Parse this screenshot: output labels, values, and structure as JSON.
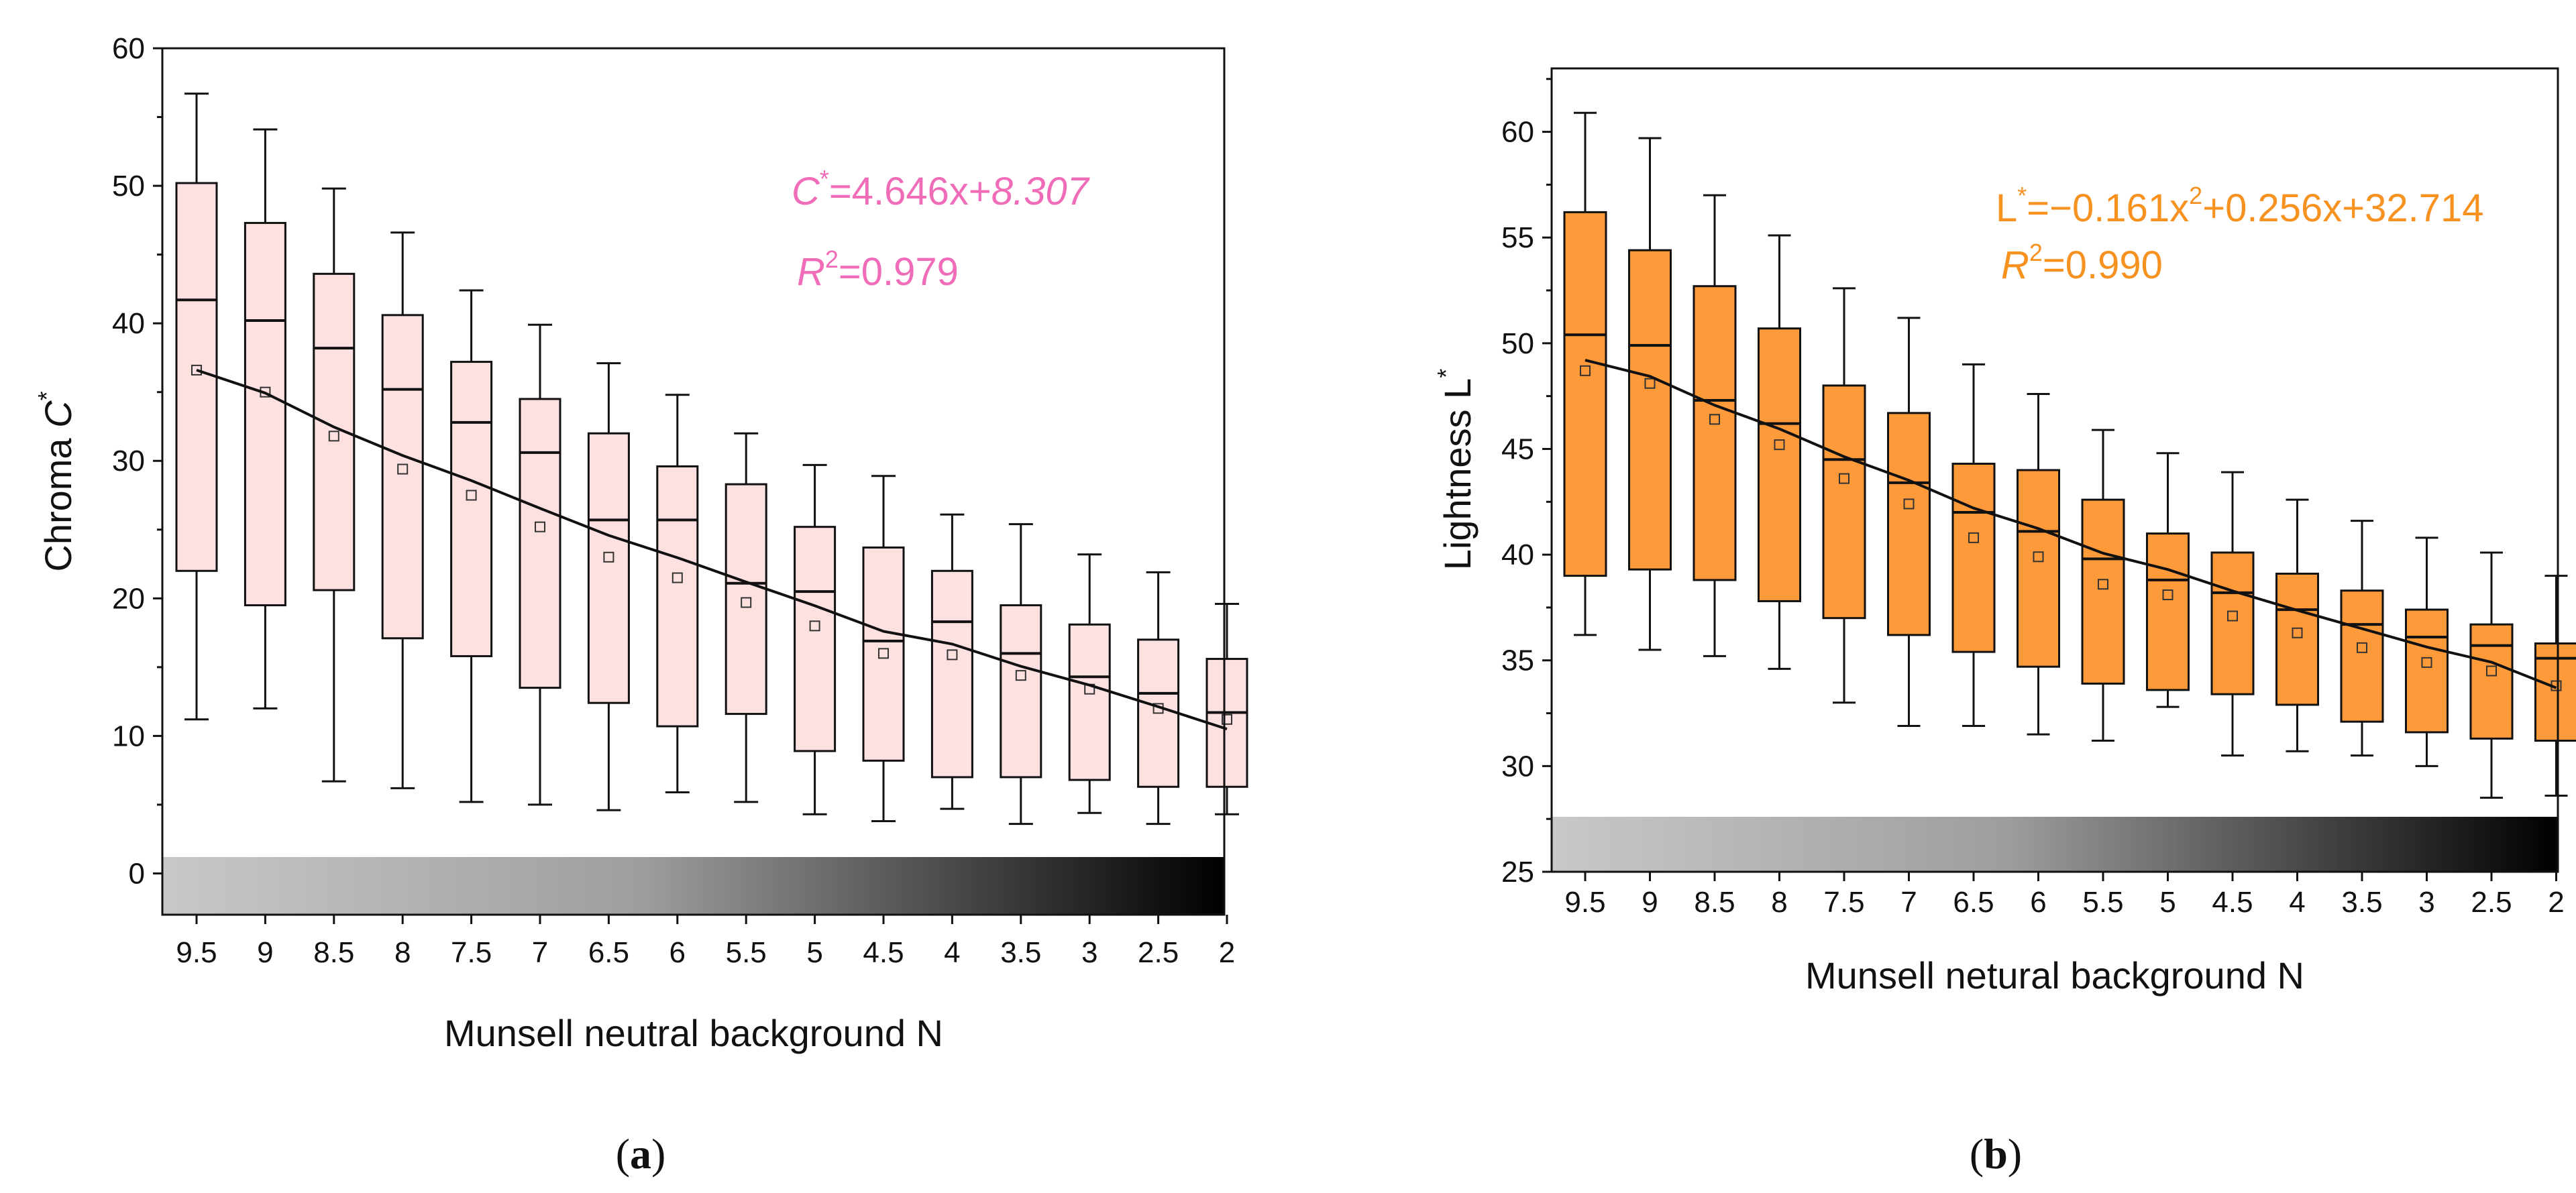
{
  "chart_data": [
    {
      "type": "box",
      "panel_label_prefix": "(",
      "panel_label_letter": "a",
      "panel_label_suffix": ")",
      "categories": [
        "9.5",
        "9",
        "8.5",
        "8",
        "7.5",
        "7",
        "6.5",
        "6",
        "5.5",
        "5",
        "4.5",
        "4",
        "3.5",
        "3",
        "2.5",
        "2"
      ],
      "ylim": [
        -3,
        60
      ],
      "yticks": [
        0,
        10,
        20,
        30,
        40,
        50,
        60
      ],
      "ylabel_text": "Chroma ",
      "ylabel_var": "C",
      "ylabel_sup": "*",
      "xlabel": "Munsell neutral background N",
      "box_fill": "#fde1e1",
      "equation": {
        "color": "#f06cb8",
        "line1_var": "C",
        "line1_sup": "*",
        "line1_mid": "=4.646x+",
        "line1_tail": "8.307",
        "line2_var": "R",
        "line2_sup": "2",
        "line2_tail": "=0.979"
      },
      "series": {
        "whisker_low": [
          11.2,
          12.0,
          6.7,
          6.2,
          5.2,
          5.0,
          4.6,
          5.9,
          5.2,
          4.3,
          3.8,
          4.7,
          3.6,
          4.4,
          3.6,
          4.3
        ],
        "q1": [
          22.0,
          19.5,
          20.6,
          17.1,
          15.8,
          13.5,
          12.4,
          10.7,
          11.6,
          8.9,
          8.2,
          7.0,
          7.0,
          6.8,
          6.3,
          6.3
        ],
        "median": [
          41.7,
          40.2,
          38.2,
          35.2,
          32.8,
          30.6,
          25.7,
          25.7,
          21.1,
          20.5,
          16.9,
          18.3,
          16.0,
          14.3,
          13.1,
          11.7
        ],
        "q3": [
          50.2,
          47.3,
          43.6,
          40.6,
          37.2,
          34.5,
          32.0,
          29.6,
          28.3,
          25.2,
          23.7,
          22.0,
          19.5,
          18.1,
          17.0,
          15.6
        ],
        "whisker_high": [
          56.7,
          54.1,
          49.8,
          46.6,
          42.4,
          39.9,
          37.1,
          34.8,
          32.0,
          29.7,
          28.9,
          26.1,
          25.4,
          23.2,
          21.9,
          19.6
        ],
        "mean": [
          36.6,
          35.0,
          31.8,
          29.4,
          27.5,
          25.2,
          23.0,
          21.5,
          19.7,
          18.0,
          16.0,
          15.9,
          14.4,
          13.4,
          12.0,
          11.2
        ],
        "fit_start": 36.6,
        "fit_end": 10.5
      }
    },
    {
      "type": "box",
      "panel_label_prefix": "(",
      "panel_label_letter": "b",
      "panel_label_suffix": ")",
      "categories": [
        "9.5",
        "9",
        "8.5",
        "8",
        "7.5",
        "7",
        "6.5",
        "6",
        "5.5",
        "5",
        "4.5",
        "4",
        "3.5",
        "3",
        "2.5",
        "2"
      ],
      "ylim": [
        25,
        63
      ],
      "yticks": [
        25,
        30,
        35,
        40,
        45,
        50,
        55,
        60
      ],
      "ylabel_text": "Lightness L",
      "ylabel_sup": "*",
      "xlabel": "Munsell netural background N",
      "box_fill": "#fe9a3a",
      "equation": {
        "color": "#f7911f",
        "line1_var": "L",
        "line1_sup": "*",
        "line1_mid": "=−0.161x",
        "line1_sup2": "2",
        "line1_tail": "+0.256x+32.714",
        "line2_var": "R",
        "line2_sup": "2",
        "line2_tail": "=0.990"
      },
      "series": {
        "whisker_low": [
          36.2,
          35.5,
          35.2,
          34.6,
          33.0,
          31.9,
          31.9,
          31.5,
          31.2,
          32.8,
          30.5,
          30.7,
          30.5,
          30.0,
          28.5,
          28.6
        ],
        "q1": [
          39.0,
          39.3,
          38.8,
          37.8,
          37.0,
          36.2,
          35.4,
          34.7,
          33.9,
          33.6,
          33.4,
          32.9,
          32.1,
          31.6,
          31.3,
          31.2
        ],
        "median": [
          50.4,
          49.9,
          47.3,
          46.2,
          44.5,
          43.4,
          42.0,
          41.1,
          39.8,
          38.8,
          38.2,
          37.4,
          36.7,
          36.1,
          35.7,
          35.1
        ],
        "q3": [
          56.2,
          54.4,
          52.7,
          50.7,
          48.0,
          46.7,
          44.3,
          44.0,
          42.6,
          41.0,
          40.1,
          39.1,
          38.3,
          37.4,
          36.7,
          35.8
        ],
        "whisker_high": [
          60.9,
          59.7,
          57.0,
          55.1,
          52.6,
          51.2,
          49.0,
          47.6,
          45.9,
          44.8,
          43.9,
          42.6,
          41.6,
          40.8,
          40.1,
          39.0
        ],
        "mean": [
          48.7,
          48.1,
          46.4,
          45.2,
          43.6,
          42.4,
          40.8,
          39.9,
          38.6,
          38.1,
          37.1,
          36.3,
          35.6,
          34.9,
          34.5,
          33.8
        ],
        "fit_start": 49.2,
        "fit_end": 33.7
      }
    }
  ]
}
